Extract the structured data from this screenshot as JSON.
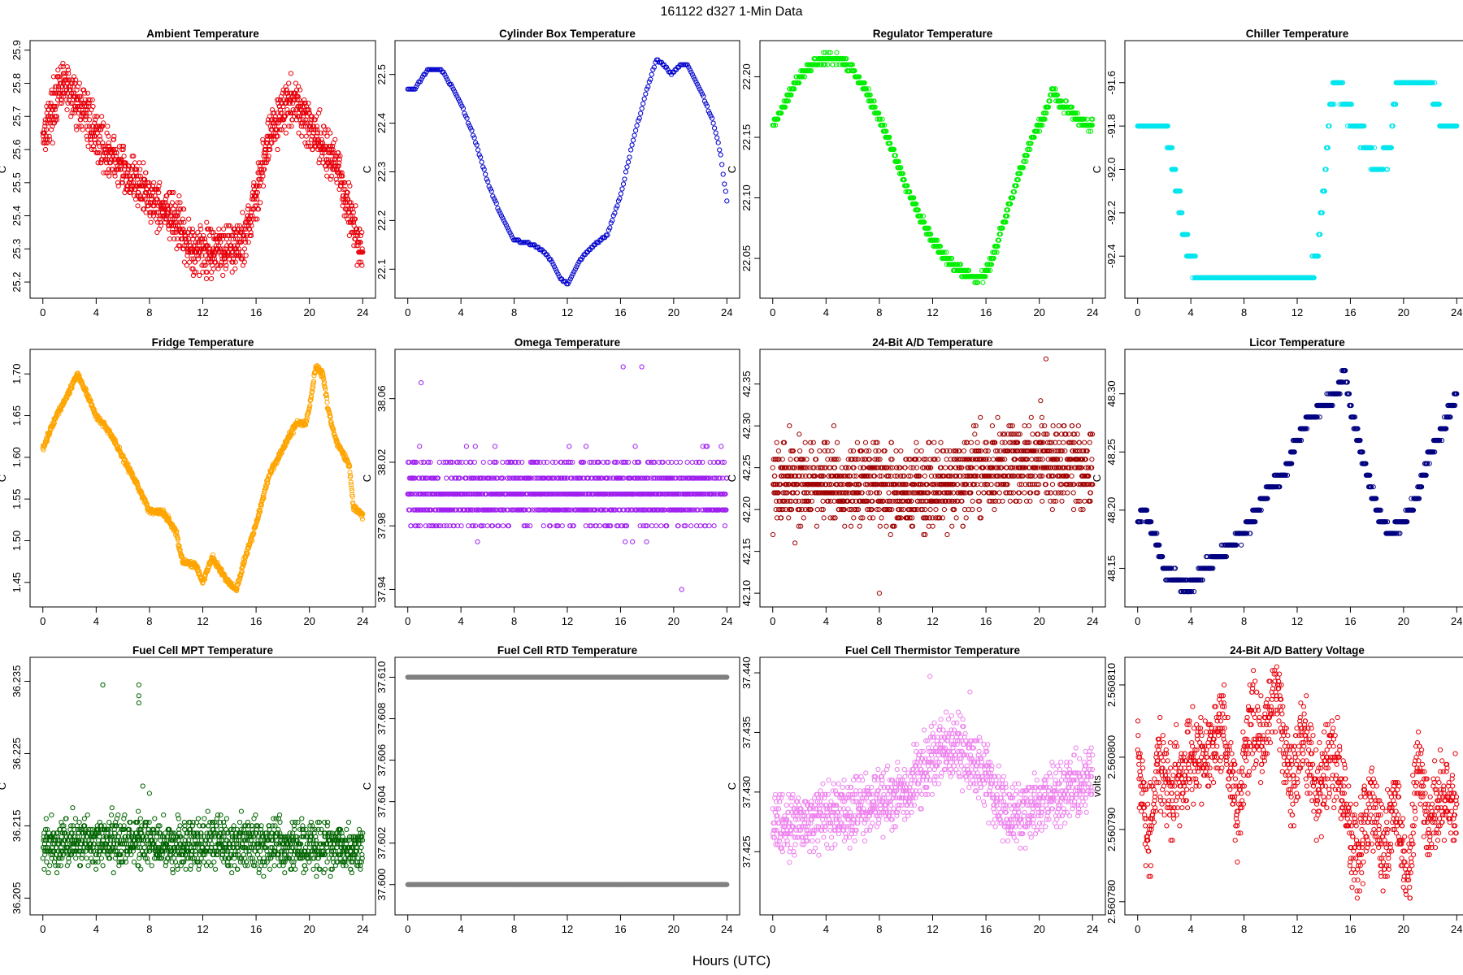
{
  "figure": {
    "title": "161122    d327    1-Min Data",
    "xlabel": "Hours (UTC)"
  },
  "chart_data": [
    {
      "type": "scatter",
      "title": "Ambient Temperature",
      "ylabel": "C",
      "color": "#e8000b",
      "xlim": [
        0,
        24
      ],
      "ylim": [
        25.18,
        25.9
      ],
      "xticks": [
        0,
        4,
        8,
        12,
        16,
        20,
        24
      ],
      "yticks": [
        25.2,
        25.3,
        25.4,
        25.5,
        25.6,
        25.7,
        25.8,
        25.9
      ],
      "ydec": 1,
      "trend": [
        [
          0,
          25.65
        ],
        [
          1.5,
          25.8
        ],
        [
          3,
          25.72
        ],
        [
          5,
          25.58
        ],
        [
          8,
          25.46
        ],
        [
          10,
          25.38
        ],
        [
          11,
          25.3
        ],
        [
          13,
          25.3
        ],
        [
          15,
          25.32
        ],
        [
          16,
          25.45
        ],
        [
          17,
          25.65
        ],
        [
          18.5,
          25.75
        ],
        [
          20,
          25.68
        ],
        [
          22,
          25.55
        ],
        [
          23,
          25.42
        ],
        [
          24,
          25.28
        ]
      ],
      "noise": 0.06,
      "quant": 0.01,
      "n": 1440,
      "gaps": [],
      "outliers": []
    },
    {
      "type": "scatter",
      "title": "Cylinder Box Temperature",
      "ylabel": "C",
      "color": "#0000cc",
      "xlim": [
        0,
        24
      ],
      "ylim": [
        22.06,
        22.55
      ],
      "xticks": [
        0,
        4,
        8,
        12,
        16,
        20,
        24
      ],
      "yticks": [
        22.1,
        22.2,
        22.3,
        22.4,
        22.5
      ],
      "ydec": 1,
      "trend": [
        [
          0,
          22.47
        ],
        [
          0.5,
          22.47
        ],
        [
          1.5,
          22.51
        ],
        [
          2.5,
          22.51
        ],
        [
          3,
          22.49
        ],
        [
          4,
          22.44
        ],
        [
          5,
          22.37
        ],
        [
          6,
          22.28
        ],
        [
          7,
          22.21
        ],
        [
          8,
          22.16
        ],
        [
          9.5,
          22.15
        ],
        [
          10.5,
          22.13
        ],
        [
          11.5,
          22.08
        ],
        [
          12,
          22.07
        ],
        [
          13,
          22.12
        ],
        [
          14,
          22.15
        ],
        [
          15,
          22.17
        ],
        [
          16,
          22.25
        ],
        [
          17,
          22.37
        ],
        [
          18,
          22.47
        ],
        [
          18.7,
          22.53
        ],
        [
          19.3,
          22.52
        ],
        [
          19.8,
          22.5
        ],
        [
          20.5,
          22.52
        ],
        [
          21,
          22.52
        ],
        [
          22,
          22.47
        ],
        [
          23,
          22.4
        ],
        [
          23.5,
          22.34
        ],
        [
          24,
          22.24
        ]
      ],
      "noise": 0,
      "quant": 0.005,
      "n": 260,
      "gaps": [],
      "outliers": []
    },
    {
      "type": "scatter",
      "title": "Regulator Temperature",
      "ylabel": "C",
      "color": "#00ee00",
      "xlim": [
        0,
        24
      ],
      "ylim": [
        22.025,
        22.222
      ],
      "xticks": [
        0,
        4,
        8,
        12,
        16,
        20,
        24
      ],
      "yticks": [
        22.05,
        22.1,
        22.15,
        22.2
      ],
      "ydec": 2,
      "trend": [
        [
          0,
          22.16
        ],
        [
          1,
          22.18
        ],
        [
          2,
          22.2
        ],
        [
          3,
          22.21
        ],
        [
          4,
          22.215
        ],
        [
          5,
          22.215
        ],
        [
          6,
          22.205
        ],
        [
          7,
          22.19
        ],
        [
          8,
          22.165
        ],
        [
          9,
          22.14
        ],
        [
          10,
          22.11
        ],
        [
          11,
          22.085
        ],
        [
          12,
          22.065
        ],
        [
          13,
          22.05
        ],
        [
          14,
          22.04
        ],
        [
          15,
          22.035
        ],
        [
          15.8,
          22.035
        ],
        [
          16.5,
          22.05
        ],
        [
          17.5,
          22.085
        ],
        [
          18.5,
          22.12
        ],
        [
          19.5,
          22.15
        ],
        [
          20.5,
          22.17
        ],
        [
          21,
          22.19
        ],
        [
          21.5,
          22.18
        ],
        [
          22.5,
          22.17
        ],
        [
          23.5,
          22.16
        ],
        [
          24,
          22.16
        ]
      ],
      "noise": 0.003,
      "quant": 0.005,
      "n": 900,
      "gaps": [],
      "outliers": []
    },
    {
      "type": "scatter",
      "title": "Chiller Temperature",
      "ylabel": "C",
      "color": "#00e5ee",
      "xlim": [
        0,
        24
      ],
      "ylim": [
        -92.55,
        -91.45
      ],
      "xticks": [
        0,
        4,
        8,
        12,
        16,
        20,
        24
      ],
      "yticks": [
        -92.4,
        -92.2,
        -92.0,
        -91.8,
        -91.6
      ],
      "ydec": 1,
      "trend": [
        [
          0,
          -91.8
        ],
        [
          2,
          -91.8
        ],
        [
          2.5,
          -91.9
        ],
        [
          3,
          -92.1
        ],
        [
          3.5,
          -92.3
        ],
        [
          4,
          -92.4
        ],
        [
          4.5,
          -92.5
        ],
        [
          13,
          -92.5
        ],
        [
          13.5,
          -92.4
        ],
        [
          14,
          -92.1
        ],
        [
          14.5,
          -91.7
        ],
        [
          15,
          -91.6
        ],
        [
          16,
          -91.75
        ],
        [
          17,
          -91.85
        ],
        [
          18,
          -92.0
        ],
        [
          19,
          -91.9
        ],
        [
          19.5,
          -91.6
        ],
        [
          22,
          -91.6
        ],
        [
          22.5,
          -91.7
        ],
        [
          23,
          -91.8
        ],
        [
          24,
          -91.8
        ]
      ],
      "noise": 0.03,
      "quant": 0.1,
      "n": 900,
      "gaps": [],
      "outliers": []
    },
    {
      "type": "scatter",
      "title": "Fridge Temperature",
      "ylabel": "C",
      "color": "#ffa500",
      "xlim": [
        0,
        24
      ],
      "ylim": [
        1.432,
        1.718
      ],
      "xticks": [
        0,
        4,
        8,
        12,
        16,
        20,
        24
      ],
      "yticks": [
        1.45,
        1.5,
        1.55,
        1.6,
        1.65,
        1.7
      ],
      "ydec": 2,
      "trend": [
        [
          0,
          1.61
        ],
        [
          1,
          1.65
        ],
        [
          2,
          1.68
        ],
        [
          2.6,
          1.7
        ],
        [
          3.2,
          1.68
        ],
        [
          4,
          1.65
        ],
        [
          5,
          1.63
        ],
        [
          6,
          1.6
        ],
        [
          7,
          1.57
        ],
        [
          8,
          1.535
        ],
        [
          9,
          1.535
        ],
        [
          10,
          1.51
        ],
        [
          10.5,
          1.475
        ],
        [
          11.5,
          1.47
        ],
        [
          12,
          1.45
        ],
        [
          12.7,
          1.48
        ],
        [
          13.5,
          1.46
        ],
        [
          14.5,
          1.44
        ],
        [
          15,
          1.47
        ],
        [
          16,
          1.52
        ],
        [
          17,
          1.58
        ],
        [
          18,
          1.61
        ],
        [
          19,
          1.64
        ],
        [
          19.7,
          1.64
        ],
        [
          20,
          1.66
        ],
        [
          20.5,
          1.71
        ],
        [
          21,
          1.7
        ],
        [
          21.5,
          1.65
        ],
        [
          22,
          1.62
        ],
        [
          23,
          1.59
        ],
        [
          23.3,
          1.54
        ],
        [
          24,
          1.53
        ]
      ],
      "noise": 0.003,
      "quant": 0.001,
      "n": 1000,
      "gaps": [],
      "outliers": []
    },
    {
      "type": "scatter",
      "title": "Omega Temperature",
      "ylabel": "C",
      "color": "#a020f0",
      "xlim": [
        0,
        24
      ],
      "ylim": [
        37.935,
        38.085
      ],
      "xticks": [
        0,
        4,
        8,
        12,
        16,
        20,
        24
      ],
      "yticks": [
        37.94,
        37.98,
        38.02,
        38.06
      ],
      "ydec": 2,
      "trend": [
        [
          0,
          38.0
        ],
        [
          24,
          38.0
        ]
      ],
      "noise": 0.018,
      "quant": 0.01,
      "n": 1300,
      "gaps": [],
      "outliers": [
        [
          1,
          38.07
        ],
        [
          16.2,
          38.08
        ],
        [
          17.6,
          38.08
        ],
        [
          20.6,
          37.94
        ]
      ]
    },
    {
      "type": "scatter",
      "title": "24-Bit A/D Temperature",
      "ylabel": "C",
      "color": "#a00000",
      "xlim": [
        0,
        24
      ],
      "ylim": [
        42.095,
        42.38
      ],
      "xticks": [
        0,
        4,
        8,
        12,
        16,
        20,
        24
      ],
      "yticks": [
        42.1,
        42.15,
        42.2,
        42.25,
        42.3,
        42.35
      ],
      "ydec": 2,
      "trend": [
        [
          0,
          42.23
        ],
        [
          8,
          42.23
        ],
        [
          12,
          42.22
        ],
        [
          16,
          42.25
        ],
        [
          20,
          42.26
        ],
        [
          24,
          42.24
        ]
      ],
      "noise": 0.04,
      "quant": 0.01,
      "n": 1440,
      "gaps": [],
      "outliers": [
        [
          8,
          42.1
        ],
        [
          20.5,
          42.38
        ]
      ]
    },
    {
      "type": "scatter",
      "title": "Licor Temperature",
      "ylabel": "C",
      "color": "#000080",
      "xlim": [
        0,
        24
      ],
      "ylim": [
        48.125,
        48.33
      ],
      "xticks": [
        0,
        4,
        8,
        12,
        16,
        20,
        24
      ],
      "yticks": [
        48.15,
        48.2,
        48.25,
        48.3
      ],
      "ydec": 2,
      "trend": [
        [
          0,
          48.19
        ],
        [
          0.5,
          48.2
        ],
        [
          1.5,
          48.17
        ],
        [
          2,
          48.15
        ],
        [
          3,
          48.14
        ],
        [
          3.5,
          48.135
        ],
        [
          4,
          48.135
        ],
        [
          5,
          48.15
        ],
        [
          6,
          48.16
        ],
        [
          7,
          48.17
        ],
        [
          8,
          48.18
        ],
        [
          9,
          48.2
        ],
        [
          10,
          48.22
        ],
        [
          11,
          48.23
        ],
        [
          12,
          48.26
        ],
        [
          13,
          48.28
        ],
        [
          14,
          48.29
        ],
        [
          15,
          48.3
        ],
        [
          15.5,
          48.32
        ],
        [
          16,
          48.29
        ],
        [
          17,
          48.24
        ],
        [
          18,
          48.2
        ],
        [
          19,
          48.18
        ],
        [
          20,
          48.19
        ],
        [
          21,
          48.21
        ],
        [
          22,
          48.25
        ],
        [
          23,
          48.27
        ],
        [
          24,
          48.3
        ]
      ],
      "noise": 0.004,
      "quant": 0.01,
      "n": 900,
      "gaps": [],
      "outliers": []
    },
    {
      "type": "scatter",
      "title": "Fuel Cell MPT Temperature",
      "ylabel": "C",
      "color": "#006400",
      "xlim": [
        0,
        24
      ],
      "ylim": [
        36.204,
        36.237
      ],
      "xticks": [
        0,
        4,
        8,
        12,
        16,
        20,
        24
      ],
      "yticks": [
        36.205,
        36.215,
        36.225,
        36.235
      ],
      "ydec": 3,
      "trend": [
        [
          0,
          36.2125
        ],
        [
          4,
          36.213
        ],
        [
          8,
          36.2125
        ],
        [
          16,
          36.2125
        ],
        [
          24,
          36.212
        ]
      ],
      "noise": 0.0028,
      "quant": 0.0005,
      "n": 1440,
      "gaps": [],
      "outliers": [
        [
          4.5,
          36.2345
        ],
        [
          7.2,
          36.2345
        ],
        [
          7.2,
          36.233
        ],
        [
          7.2,
          36.232
        ],
        [
          7.5,
          36.2205
        ],
        [
          8,
          36.2195
        ]
      ]
    },
    {
      "type": "scatter",
      "title": "Fuel Cell RTD Temperature",
      "ylabel": "C",
      "color": "#808080",
      "xlim": [
        0,
        24
      ],
      "ylim": [
        37.599,
        37.6105
      ],
      "xticks": [
        0,
        4,
        8,
        12,
        16,
        20,
        24
      ],
      "yticks": [
        37.6,
        37.602,
        37.604,
        37.606,
        37.608,
        37.61
      ],
      "ydec": 3,
      "trend": [
        [
          0,
          37.61
        ],
        [
          24,
          37.61
        ]
      ],
      "noise": 0,
      "quant": 0.01,
      "n": 1200,
      "gaps": [],
      "outliers": [],
      "lines": [
        37.61,
        37.6
      ]
    },
    {
      "type": "scatter",
      "title": "Fuel Cell Thermistor Temperature",
      "ylabel": "C",
      "color": "#ee82ee",
      "xlim": [
        0,
        24
      ],
      "ylim": [
        37.4205,
        37.4405
      ],
      "xticks": [
        0,
        4,
        8,
        12,
        16,
        20,
        24
      ],
      "yticks": [
        37.425,
        37.43,
        37.435,
        37.44
      ],
      "ydec": 3,
      "trend": [
        [
          0,
          37.427
        ],
        [
          4,
          37.428
        ],
        [
          8,
          37.429
        ],
        [
          10,
          37.43
        ],
        [
          12,
          37.433
        ],
        [
          14,
          37.434
        ],
        [
          16,
          37.431
        ],
        [
          18,
          37.428
        ],
        [
          20,
          37.429
        ],
        [
          24,
          37.431
        ]
      ],
      "noise": 0.0022,
      "quant": 0.0003,
      "n": 1300,
      "gaps": [],
      "outliers": [
        [
          11.8,
          37.4397
        ],
        [
          14.8,
          37.4384
        ]
      ]
    },
    {
      "type": "scatter",
      "title": "24-Bit A/D Battery Voltage",
      "ylabel": "volts",
      "color": "#e8000b",
      "xlim": [
        0,
        24
      ],
      "ylim": [
        2.5607795,
        2.5608125
      ],
      "xticks": [
        0,
        4,
        8,
        12,
        16,
        20,
        24
      ],
      "yticks": [
        2.56078,
        2.56079,
        2.5608,
        2.56081
      ],
      "ydec": 6,
      "trend": [
        [
          0,
          2.5608
        ],
        [
          0.8,
          2.5607875
        ],
        [
          1.5,
          2.5608
        ],
        [
          2.5,
          2.560795
        ],
        [
          3.5,
          2.560798
        ],
        [
          4.5,
          2.5608
        ],
        [
          5.5,
          2.560801
        ],
        [
          6.5,
          2.560804
        ],
        [
          7.5,
          2.560792
        ],
        [
          8.5,
          2.560805
        ],
        [
          9.5,
          2.560802
        ],
        [
          10.5,
          2.56081
        ],
        [
          11.5,
          2.560795
        ],
        [
          12.5,
          2.560803
        ],
        [
          13.5,
          2.560795
        ],
        [
          14.5,
          2.560801
        ],
        [
          15.5,
          2.560795
        ],
        [
          16.5,
          2.560785
        ],
        [
          17.5,
          2.560795
        ],
        [
          18.5,
          2.560787
        ],
        [
          19.5,
          2.560794
        ],
        [
          20.3,
          2.56078
        ],
        [
          21,
          2.5608
        ],
        [
          22,
          2.56079
        ],
        [
          23,
          2.560795
        ],
        [
          24,
          2.560792
        ]
      ],
      "noise": 5e-06,
      "quant": 5e-07,
      "n": 1300,
      "gaps": [],
      "outliers": []
    }
  ]
}
